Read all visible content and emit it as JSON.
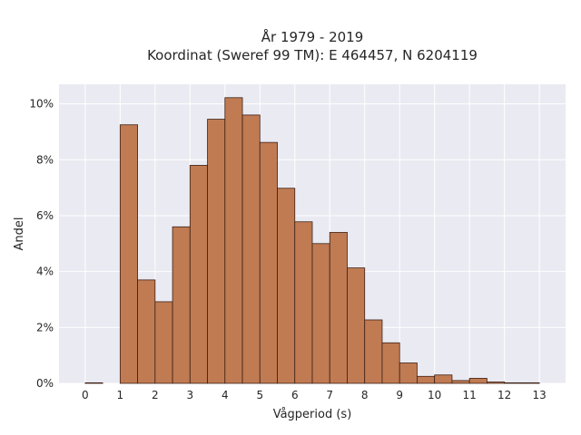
{
  "chart_data": {
    "type": "bar",
    "title_lines": [
      "År 1979 - 2019",
      "Koordinat (Sweref 99 TM): E 464457, N 6204119"
    ],
    "xlabel": "Vågperiod (s)",
    "ylabel": "Andel",
    "x_ticks": [
      0,
      1,
      2,
      3,
      4,
      5,
      6,
      7,
      8,
      9,
      10,
      11,
      12,
      13
    ],
    "y_ticks": [
      0,
      2,
      4,
      6,
      8,
      10
    ],
    "y_tick_labels": [
      "0%",
      "2%",
      "4%",
      "6%",
      "8%",
      "10%"
    ],
    "xlim": [
      -0.75,
      13.75
    ],
    "ylim": [
      0,
      10.7
    ],
    "bin_width": 0.5,
    "bins": [
      {
        "start": 0.0,
        "value": 0.02
      },
      {
        "start": 0.5,
        "value": 0.0
      },
      {
        "start": 1.0,
        "value": 9.25
      },
      {
        "start": 1.5,
        "value": 3.7
      },
      {
        "start": 2.0,
        "value": 2.92
      },
      {
        "start": 2.5,
        "value": 5.6
      },
      {
        "start": 3.0,
        "value": 7.8
      },
      {
        "start": 3.5,
        "value": 9.45
      },
      {
        "start": 4.0,
        "value": 10.22
      },
      {
        "start": 4.5,
        "value": 9.6
      },
      {
        "start": 5.0,
        "value": 8.62
      },
      {
        "start": 5.5,
        "value": 6.98
      },
      {
        "start": 6.0,
        "value": 5.78
      },
      {
        "start": 6.5,
        "value": 5.0
      },
      {
        "start": 7.0,
        "value": 5.4
      },
      {
        "start": 7.5,
        "value": 4.13
      },
      {
        "start": 8.0,
        "value": 2.27
      },
      {
        "start": 8.5,
        "value": 1.45
      },
      {
        "start": 9.0,
        "value": 0.73
      },
      {
        "start": 9.5,
        "value": 0.25
      },
      {
        "start": 10.0,
        "value": 0.3
      },
      {
        "start": 10.5,
        "value": 0.1
      },
      {
        "start": 11.0,
        "value": 0.18
      },
      {
        "start": 11.5,
        "value": 0.05
      },
      {
        "start": 12.0,
        "value": 0.02
      },
      {
        "start": 12.5,
        "value": 0.02
      }
    ],
    "grid": true,
    "colors": {
      "bar_fill": "#c07b53",
      "bar_edge": "#3d2014",
      "plot_background": "#eaeaf2",
      "grid": "#ffffff"
    }
  }
}
